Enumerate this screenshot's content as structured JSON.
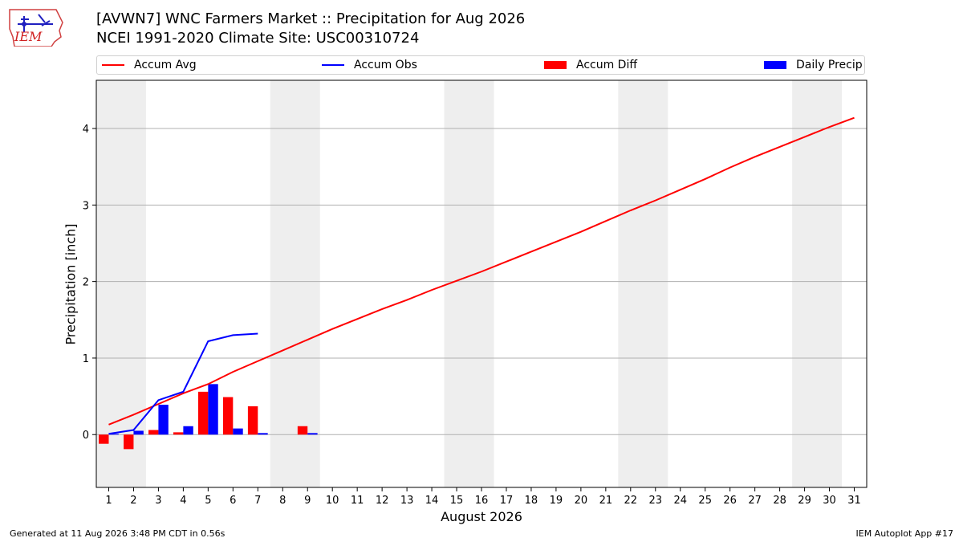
{
  "header": {
    "logo_text": "IEM",
    "title_line1": "[AVWN7] WNC Farmers Market :: Precipitation for Aug 2026",
    "title_line2": "NCEI 1991-2020 Climate Site: USC00310724"
  },
  "legend": {
    "items": [
      {
        "label": "Accum Avg",
        "kind": "line",
        "color": "#ff0000"
      },
      {
        "label": "Accum Obs",
        "kind": "line",
        "color": "#0000ff"
      },
      {
        "label": "Accum Diff",
        "kind": "patch",
        "color": "#ff0000"
      },
      {
        "label": "Daily Precip",
        "kind": "patch",
        "color": "#0000ff"
      }
    ]
  },
  "footer": {
    "left": "Generated at 11 Aug 2026 3:48 PM CDT in 0.56s",
    "right": "IEM Autoplot App #17"
  },
  "chart_data": {
    "type": "bar",
    "xlabel": "August 2026",
    "ylabel": "Precipitation [inch]",
    "x": [
      1,
      2,
      3,
      4,
      5,
      6,
      7,
      8,
      9,
      10,
      11,
      12,
      13,
      14,
      15,
      16,
      17,
      18,
      19,
      20,
      21,
      22,
      23,
      24,
      25,
      26,
      27,
      28,
      29,
      30,
      31
    ],
    "xlim": [
      0.5,
      31.5
    ],
    "ylim": [
      -0.69,
      4.63
    ],
    "yticks": [
      0,
      1,
      2,
      3,
      4
    ],
    "grid": "horizontal",
    "weekend_shading": [
      [
        0.5,
        2.5
      ],
      [
        7.5,
        9.5
      ],
      [
        14.5,
        16.5
      ],
      [
        21.5,
        23.5
      ],
      [
        28.5,
        30.5
      ]
    ],
    "series": [
      {
        "name": "Accum Avg",
        "kind": "line",
        "color": "#ff0000",
        "x": [
          1,
          2,
          3,
          4,
          5,
          6,
          7,
          8,
          9,
          10,
          11,
          12,
          13,
          14,
          15,
          16,
          17,
          18,
          19,
          20,
          21,
          22,
          23,
          24,
          25,
          26,
          27,
          28,
          29,
          30,
          31
        ],
        "values": [
          0.13,
          0.26,
          0.4,
          0.54,
          0.66,
          0.82,
          0.96,
          1.1,
          1.24,
          1.38,
          1.51,
          1.64,
          1.76,
          1.89,
          2.01,
          2.13,
          2.26,
          2.39,
          2.52,
          2.65,
          2.79,
          2.93,
          3.06,
          3.2,
          3.34,
          3.49,
          3.63,
          3.76,
          3.89,
          4.02,
          4.14
        ]
      },
      {
        "name": "Accum Obs",
        "kind": "line",
        "color": "#0000ff",
        "x": [
          1,
          2,
          3,
          4,
          5,
          6,
          7
        ],
        "values": [
          0.01,
          0.06,
          0.45,
          0.56,
          1.22,
          1.3,
          1.32
        ]
      },
      {
        "name": "Accum Diff",
        "kind": "bar",
        "color": "#ff0000",
        "x": [
          1,
          2,
          3,
          4,
          5,
          6,
          7,
          9
        ],
        "values": [
          -0.12,
          -0.19,
          0.06,
          0.03,
          0.56,
          0.49,
          0.37,
          0.11
        ]
      },
      {
        "name": "Daily Precip",
        "kind": "bar",
        "color": "#0000ff",
        "x": [
          1,
          2,
          3,
          4,
          5,
          6,
          7,
          9
        ],
        "values": [
          0.01,
          0.05,
          0.39,
          0.11,
          0.66,
          0.08,
          0.02,
          0.02
        ]
      }
    ]
  }
}
